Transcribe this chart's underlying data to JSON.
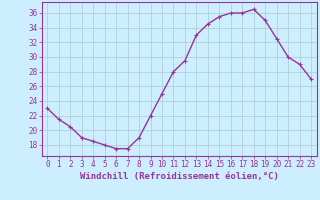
{
  "x": [
    0,
    1,
    2,
    3,
    4,
    5,
    6,
    7,
    8,
    9,
    10,
    11,
    12,
    13,
    14,
    15,
    16,
    17,
    18,
    19,
    20,
    21,
    22,
    23
  ],
  "y": [
    23,
    21.5,
    20.5,
    19,
    18.5,
    18,
    17.5,
    17.5,
    19,
    22,
    25,
    28,
    29.5,
    33,
    34.5,
    35.5,
    36,
    36,
    36.5,
    35,
    32.5,
    30,
    29,
    27
  ],
  "line_color": "#993399",
  "marker": "+",
  "marker_size": 3,
  "bg_color": "#cceeff",
  "grid_color": "#aacccc",
  "xlabel": "Windchill (Refroidissement éolien,°C)",
  "xlabel_color": "#993399",
  "xlabel_fontsize": 6.5,
  "xtick_labels": [
    "0",
    "1",
    "2",
    "3",
    "4",
    "5",
    "6",
    "7",
    "8",
    "9",
    "10",
    "11",
    "12",
    "13",
    "14",
    "15",
    "16",
    "17",
    "18",
    "19",
    "20",
    "21",
    "22",
    "23"
  ],
  "ytick_values": [
    18,
    20,
    22,
    24,
    26,
    28,
    30,
    32,
    34,
    36
  ],
  "ylim": [
    16.5,
    37.5
  ],
  "xlim": [
    -0.5,
    23.5
  ],
  "tick_color": "#993399",
  "tick_fontsize": 5.5,
  "line_width": 1.0,
  "spine_color": "#993399",
  "marker_edge_width": 0.8
}
